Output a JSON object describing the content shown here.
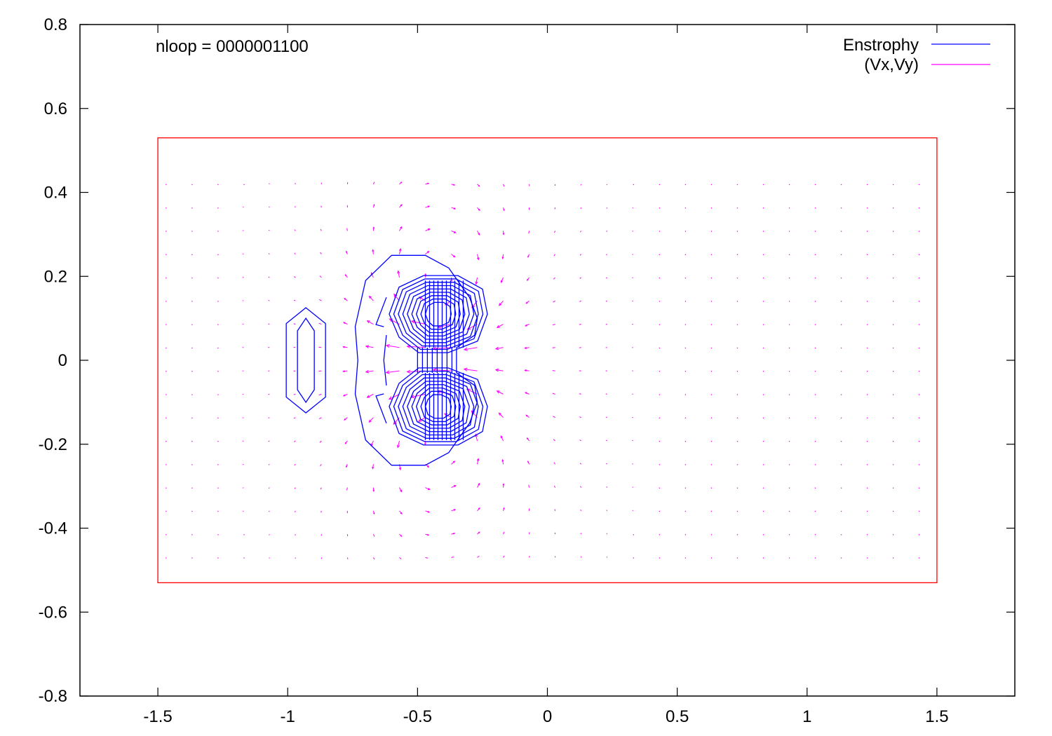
{
  "chart_data": {
    "type": "contour+vector",
    "title": "",
    "annotation": "nloop = 0000001100",
    "xlabel": "",
    "ylabel": "",
    "xlim": [
      -1.8,
      1.8
    ],
    "ylim": [
      -0.8,
      0.8
    ],
    "x_ticks": [
      "-1.5",
      "-1",
      "-0.5",
      "0",
      "0.5",
      "1",
      "1.5"
    ],
    "x_tick_values": [
      -1.5,
      -1,
      -0.5,
      0,
      0.5,
      1,
      1.5
    ],
    "y_ticks": [
      "0.8",
      "0.6",
      "0.4",
      "0.2",
      "0",
      "-0.2",
      "-0.4",
      "-0.6",
      "-0.8"
    ],
    "y_tick_values": [
      0.8,
      0.6,
      0.4,
      0.2,
      0,
      -0.2,
      -0.4,
      -0.6,
      -0.8
    ],
    "legend": [
      {
        "name": "Enstrophy",
        "color": "#0000ff"
      },
      {
        "name": "(Vx,Vy)",
        "color": "#ff00ff"
      }
    ],
    "legend_position": "top-right",
    "domain_box": {
      "x": [
        -1.5,
        1.5
      ],
      "y": [
        -0.53,
        0.53
      ],
      "color": "#ff0000"
    },
    "vector_grid": {
      "x_range": [
        -1.47,
        1.47
      ],
      "y_range": [
        -0.47,
        0.47
      ],
      "x_step": 0.1,
      "y_step": 0.0556
    },
    "vortex": {
      "upper_center": [
        -0.42,
        0.11
      ],
      "lower_center": [
        -0.42,
        -0.11
      ],
      "secondary_center": [
        -0.93,
        0.0
      ]
    },
    "colors": {
      "contour": "#0000ff",
      "vector": "#ff00ff",
      "box": "#ff0000",
      "axis": "#000000"
    }
  }
}
